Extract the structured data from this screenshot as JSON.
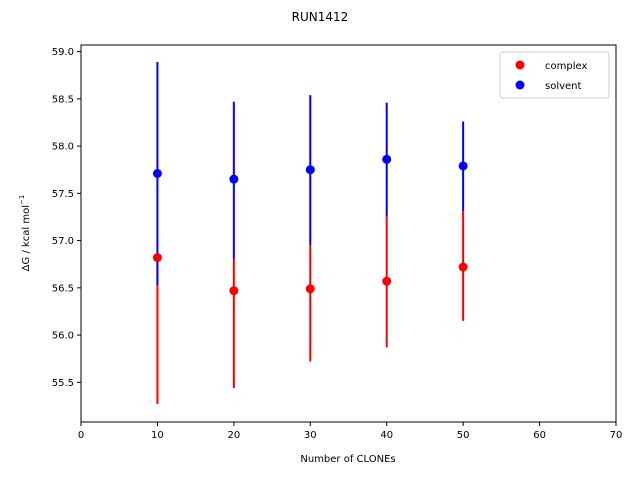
{
  "chart_data": {
    "type": "scatter",
    "title": "RUN1412",
    "xlabel": "Number of CLONEs",
    "ylabel_main": "ΔG / kcal mol",
    "ylabel_sup": "−1",
    "xlim": [
      0,
      70
    ],
    "ylim": [
      55.08,
      59.07
    ],
    "x_ticks": [
      0,
      10,
      20,
      30,
      40,
      50,
      60,
      70
    ],
    "x_tick_labels": [
      "0",
      "10",
      "20",
      "30",
      "40",
      "50",
      "60",
      "70"
    ],
    "y_ticks": [
      55.5,
      56.0,
      56.5,
      57.0,
      57.5,
      58.0,
      58.5,
      59.0
    ],
    "y_tick_labels": [
      "55.5",
      "56.0",
      "56.5",
      "57.0",
      "57.5",
      "58.0",
      "58.5",
      "59.0"
    ],
    "grid": false,
    "legend_position": "top-right",
    "series": [
      {
        "name": "complex",
        "color": "#ff0000",
        "x": [
          10,
          20,
          30,
          40,
          50
        ],
        "y": [
          56.82,
          56.47,
          56.49,
          56.57,
          56.72
        ],
        "err_low": [
          55.27,
          55.44,
          55.72,
          55.87,
          56.15
        ],
        "err_high": [
          56.83,
          56.81,
          56.95,
          57.26,
          57.31
        ]
      },
      {
        "name": "solvent",
        "color": "#0000ff",
        "x": [
          10,
          20,
          30,
          40,
          50
        ],
        "y": [
          57.71,
          57.65,
          57.75,
          57.86,
          57.79
        ],
        "err_low": [
          56.53,
          56.81,
          56.95,
          57.26,
          57.31
        ],
        "err_high": [
          58.89,
          58.47,
          58.54,
          58.46,
          58.26
        ]
      }
    ]
  }
}
